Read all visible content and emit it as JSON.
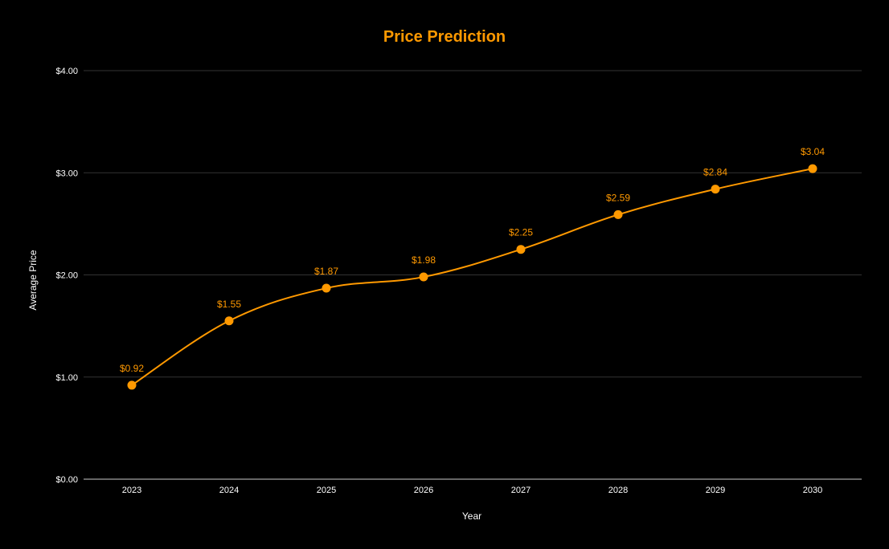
{
  "colors": {
    "background": "#000000",
    "accent": "#ff9900",
    "grid": "#333333",
    "baseline": "#cccccc",
    "text": "#ffffff"
  },
  "chart_data": {
    "type": "line",
    "title": "Price Prediction",
    "xlabel": "Year",
    "ylabel": "Average Price",
    "categories": [
      "2023",
      "2024",
      "2025",
      "2026",
      "2027",
      "2028",
      "2029",
      "2030"
    ],
    "series": [
      {
        "values": [
          0.92,
          1.55,
          1.87,
          1.98,
          2.25,
          2.59,
          2.84,
          3.04
        ],
        "labels": [
          "$0.92",
          "$1.55",
          "$1.87",
          "$1.98",
          "$2.25",
          "$2.59",
          "$2.84",
          "$3.04"
        ]
      }
    ],
    "ylim": [
      0,
      4
    ],
    "yticks": [
      0,
      1,
      2,
      3,
      4
    ],
    "ytick_labels": [
      "$0.00",
      "$1.00",
      "$2.00",
      "$3.00",
      "$4.00"
    ],
    "grid": true,
    "smooth": true,
    "markers": true,
    "legend": "none"
  }
}
